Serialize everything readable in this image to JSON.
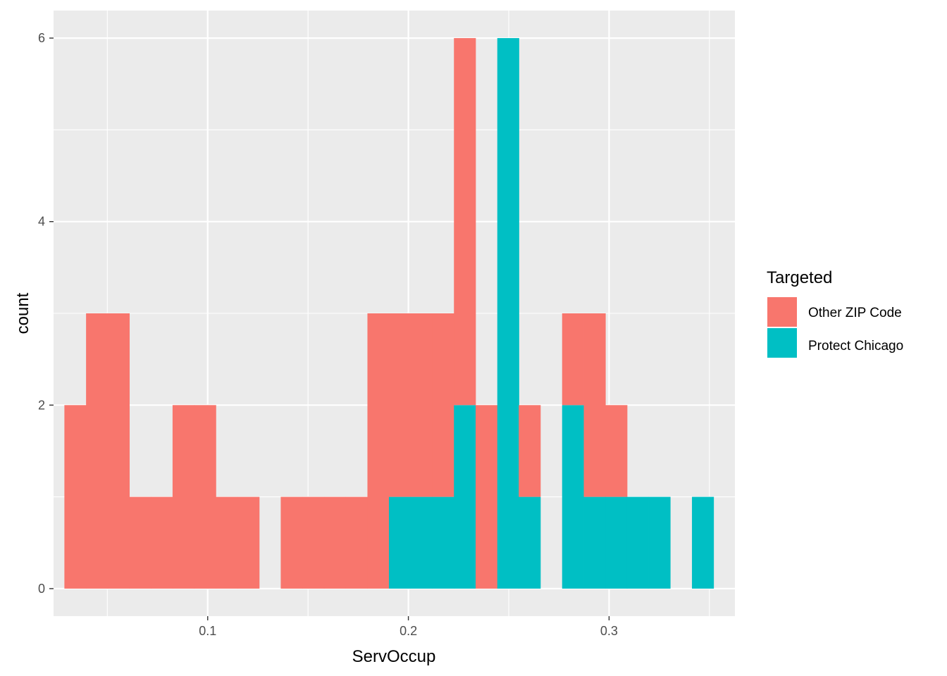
{
  "chart_data": {
    "type": "bar",
    "subtype": "stacked-histogram",
    "xlabel": "ServOccup",
    "ylabel": "count",
    "xlim": [
      0.0232,
      0.3627
    ],
    "ylim": [
      -0.3,
      6.3
    ],
    "x_ticks": [
      0.1,
      0.2,
      0.3
    ],
    "x_tick_labels": [
      "0.1",
      "0.2",
      "0.3"
    ],
    "y_ticks": [
      0,
      2,
      4,
      6
    ],
    "y_tick_labels": [
      "0",
      "2",
      "4",
      "6"
    ],
    "grid": true,
    "bin_width": 0.01078,
    "bin_starts": [
      0.0286,
      0.0394,
      0.0502,
      0.061,
      0.0717,
      0.0825,
      0.0933,
      0.1041,
      0.1149,
      0.1257,
      0.1364,
      0.1472,
      0.158,
      0.1688,
      0.1796,
      0.1903,
      0.2011,
      0.2119,
      0.2227,
      0.2335,
      0.2443,
      0.255,
      0.2658,
      0.2766,
      0.2874,
      0.2982,
      0.3089,
      0.3197,
      0.3305,
      0.3413
    ],
    "series": [
      {
        "name": "Other ZIP Code",
        "color": "#F8766D",
        "values": [
          2,
          3,
          3,
          1,
          1,
          2,
          2,
          1,
          1,
          0,
          1,
          1,
          1,
          1,
          3,
          2,
          2,
          2,
          4,
          2,
          0,
          1,
          0,
          1,
          2,
          1,
          0,
          0,
          0,
          0
        ]
      },
      {
        "name": "Protect Chicago",
        "color": "#00BFC4",
        "values": [
          0,
          0,
          0,
          0,
          0,
          0,
          0,
          0,
          0,
          0,
          0,
          0,
          0,
          0,
          0,
          1,
          1,
          1,
          2,
          0,
          6,
          1,
          0,
          2,
          1,
          1,
          1,
          1,
          0,
          1
        ]
      }
    ],
    "legend": {
      "title": "Targeted",
      "position": "right"
    }
  }
}
